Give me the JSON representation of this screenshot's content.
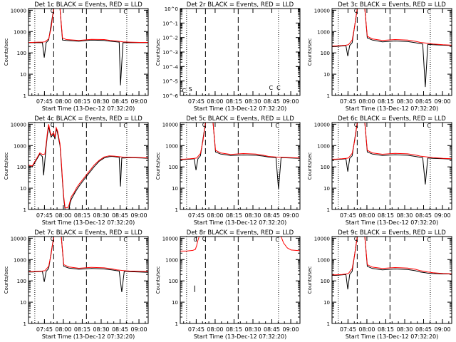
{
  "chart_data": [
    {
      "type": "line",
      "title": "Det 1c BLACK = Events, RED = LLD",
      "xlabel": "Start Time (13-Dec-12 07:32:20)",
      "ylabel": "Counts/sec",
      "yscale": "log",
      "ylim": [
        1,
        12000
      ],
      "x_ticks": [
        "07:45",
        "08:00",
        "08:15",
        "08:30",
        "08:45",
        "09:00"
      ],
      "y_ticks": [
        "1",
        "10",
        "100",
        "1000",
        "10000"
      ],
      "markers": [
        "C",
        "C"
      ],
      "series": [
        {
          "name": "Events",
          "color": "#000000",
          "x": [
            0,
            3,
            8,
            11,
            12.5,
            14,
            16,
            20,
            22,
            23.5,
            25,
            27,
            30,
            40,
            50,
            60,
            65,
            70,
            72,
            73,
            75,
            80,
            88,
            95
          ],
          "y": [
            300,
            300,
            300,
            300,
            60,
            300,
            400,
            12000,
            12000,
            12000,
            12000,
            400,
            380,
            350,
            400,
            380,
            350,
            330,
            320,
            3,
            300,
            300,
            300,
            300
          ]
        },
        {
          "name": "LLD",
          "color": "#ff0000",
          "x": [
            0,
            3,
            8,
            11,
            13,
            16,
            18,
            20,
            22,
            24,
            25,
            27,
            30,
            40,
            50,
            60,
            65,
            70,
            75,
            80,
            88,
            95
          ],
          "y": [
            310,
            310,
            320,
            320,
            330,
            450,
            1500,
            12000,
            12000,
            12000,
            12000,
            500,
            420,
            380,
            430,
            420,
            380,
            360,
            330,
            320,
            310,
            310
          ]
        }
      ]
    },
    {
      "type": "line",
      "title": "Det 2r BLACK = Events, RED = LLD",
      "xlabel": "Start Time (13-Dec-12 07:32:20)",
      "ylabel": "Counts/sec",
      "yscale": "log",
      "ylim": [
        1e-06,
        1
      ],
      "x_ticks": [
        "07:45",
        "08:00",
        "08:15",
        "08:30",
        "08:45",
        "09:00"
      ],
      "y_ticks": [
        "10^-6",
        "10^-5",
        "10^-4",
        "10^-3",
        "10^-2",
        "10^-1",
        "10^0"
      ],
      "markers": [
        "C",
        "S",
        "C",
        "C"
      ],
      "series": []
    },
    {
      "type": "line",
      "title": "Det 3c BLACK = Events, RED = LLD",
      "xlabel": "Start Time (13-Dec-12 07:32:20)",
      "ylabel": "Counts/sec",
      "yscale": "log",
      "ylim": [
        1,
        12000
      ],
      "x_ticks": [
        "07:45",
        "08:00",
        "08:15",
        "08:30",
        "08:45",
        "09:00"
      ],
      "y_ticks": [
        "1",
        "10",
        "100",
        "1000",
        "10000"
      ],
      "markers": [
        "C",
        "C"
      ],
      "series": [
        {
          "name": "Events",
          "color": "#000000",
          "x": [
            0,
            3,
            8,
            11,
            12.5,
            14,
            16,
            20,
            22,
            24,
            26,
            28,
            32,
            40,
            50,
            60,
            66,
            70,
            72,
            74,
            76,
            80,
            88,
            95
          ],
          "y": [
            200,
            200,
            210,
            220,
            70,
            220,
            300,
            12000,
            12000,
            12000,
            12000,
            500,
            400,
            330,
            360,
            340,
            300,
            270,
            260,
            2.5,
            250,
            240,
            230,
            220
          ]
        },
        {
          "name": "LLD",
          "color": "#ff0000",
          "x": [
            0,
            3,
            8,
            11,
            13,
            16,
            18,
            20,
            22,
            24,
            26,
            28,
            32,
            40,
            50,
            60,
            66,
            70,
            76,
            80,
            88,
            95
          ],
          "y": [
            210,
            210,
            220,
            230,
            240,
            400,
            1800,
            12000,
            12000,
            12000,
            12000,
            600,
            450,
            380,
            420,
            400,
            350,
            310,
            280,
            260,
            240,
            230
          ]
        }
      ]
    },
    {
      "type": "line",
      "title": "Det 4c BLACK = Events, RED = LLD",
      "xlabel": "Start Time (13-Dec-12 07:32:20)",
      "ylabel": "Counts/sec",
      "yscale": "log",
      "ylim": [
        1,
        12000
      ],
      "x_ticks": [
        "07:45",
        "08:00",
        "08:15",
        "08:30",
        "08:45",
        "09:00"
      ],
      "y_ticks": [
        "1",
        "10",
        "100",
        "1000",
        "10000"
      ],
      "markers": [
        "C",
        "C"
      ],
      "series": [
        {
          "name": "Events",
          "color": "#000000",
          "x": [
            0,
            3,
            6,
            9,
            11,
            12,
            13,
            14,
            15,
            16,
            17,
            18,
            19,
            20,
            21,
            22,
            23,
            24,
            25,
            26,
            27,
            28,
            29,
            30,
            31,
            32,
            33,
            34,
            36,
            38,
            40,
            44,
            48,
            52,
            56,
            60,
            64,
            66,
            68,
            70,
            72,
            73,
            74,
            76,
            80,
            90,
            95
          ],
          "y": [
            110,
            100,
            200,
            400,
            300,
            40,
            200,
            900,
            3000,
            8000,
            4000,
            2500,
            3000,
            3500,
            2000,
            6000,
            4000,
            2000,
            1000,
            150,
            20,
            3,
            1,
            1,
            1,
            1,
            2,
            3,
            5,
            8,
            12,
            25,
            50,
            100,
            180,
            260,
            300,
            310,
            300,
            290,
            280,
            12,
            260,
            260,
            270,
            260,
            250
          ]
        },
        {
          "name": "LLD",
          "color": "#ff0000",
          "x": [
            0,
            3,
            6,
            9,
            11,
            13,
            14,
            15,
            16,
            17,
            18,
            19,
            20,
            21,
            22,
            23,
            24,
            25,
            26,
            27,
            28,
            29,
            30,
            31,
            32,
            33,
            34,
            36,
            38,
            40,
            44,
            48,
            52,
            56,
            60,
            64,
            68,
            72,
            76,
            80,
            90,
            95
          ],
          "y": [
            120,
            110,
            220,
            450,
            380,
            400,
            1200,
            4000,
            10000,
            5000,
            3000,
            3500,
            4000,
            2500,
            7000,
            5000,
            2500,
            1200,
            200,
            25,
            4,
            1.2,
            1.2,
            1.2,
            1.5,
            2.5,
            4,
            6,
            10,
            15,
            30,
            60,
            120,
            200,
            290,
            330,
            320,
            300,
            280,
            280,
            270,
            260
          ]
        }
      ]
    },
    {
      "type": "line",
      "title": "Det 5c BLACK = Events, RED = LLD",
      "xlabel": "Start Time (13-Dec-12 07:32:20)",
      "ylabel": "Counts/sec",
      "yscale": "log",
      "ylim": [
        1,
        12000
      ],
      "x_ticks": [
        "07:45",
        "08:00",
        "08:15",
        "08:30",
        "08:45",
        "09:00"
      ],
      "y_ticks": [
        "1",
        "10",
        "100",
        "1000",
        "10000"
      ],
      "markers": [
        "C",
        "C"
      ],
      "series": [
        {
          "name": "Events",
          "color": "#000000",
          "x": [
            0,
            3,
            8,
            11,
            12.5,
            14,
            16,
            20,
            22,
            24,
            26,
            28,
            32,
            40,
            50,
            60,
            66,
            70,
            76,
            78,
            80,
            88,
            95
          ],
          "y": [
            220,
            220,
            230,
            240,
            70,
            240,
            330,
            12000,
            12000,
            12000,
            12000,
            500,
            400,
            340,
            360,
            350,
            320,
            290,
            270,
            9,
            270,
            260,
            250
          ]
        },
        {
          "name": "LLD",
          "color": "#ff0000",
          "x": [
            0,
            3,
            8,
            11,
            13,
            16,
            18,
            20,
            22,
            24,
            26,
            28,
            32,
            40,
            50,
            60,
            66,
            70,
            76,
            80,
            88,
            95
          ],
          "y": [
            230,
            230,
            240,
            250,
            260,
            420,
            1600,
            12000,
            12000,
            12000,
            12000,
            600,
            450,
            380,
            420,
            400,
            350,
            310,
            290,
            280,
            270,
            260
          ]
        }
      ]
    },
    {
      "type": "line",
      "title": "Det 6c BLACK = Events, RED = LLD",
      "xlabel": "Start Time (13-Dec-12 07:32:20)",
      "ylabel": "Counts/sec",
      "yscale": "log",
      "ylim": [
        1,
        12000
      ],
      "x_ticks": [
        "07:45",
        "08:00",
        "08:15",
        "08:30",
        "08:45",
        "09:00"
      ],
      "y_ticks": [
        "1",
        "10",
        "100",
        "1000",
        "10000"
      ],
      "markers": [
        "C",
        "C"
      ],
      "series": [
        {
          "name": "Events",
          "color": "#000000",
          "x": [
            0,
            3,
            8,
            11,
            12.5,
            14,
            16,
            20,
            22,
            24,
            26,
            28,
            32,
            40,
            50,
            60,
            66,
            70,
            72,
            74,
            76,
            80,
            88,
            95
          ],
          "y": [
            220,
            220,
            230,
            240,
            60,
            250,
            330,
            12000,
            12000,
            12000,
            12000,
            500,
            400,
            340,
            370,
            350,
            310,
            280,
            270,
            15,
            260,
            250,
            240,
            230
          ]
        },
        {
          "name": "LLD",
          "color": "#ff0000",
          "x": [
            0,
            3,
            8,
            11,
            13,
            16,
            18,
            20,
            22,
            24,
            26,
            28,
            32,
            40,
            50,
            60,
            66,
            70,
            76,
            80,
            88,
            95
          ],
          "y": [
            230,
            230,
            240,
            250,
            260,
            430,
            1700,
            12000,
            12000,
            12000,
            12000,
            600,
            450,
            390,
            430,
            410,
            360,
            320,
            290,
            270,
            250,
            240
          ]
        }
      ]
    },
    {
      "type": "line",
      "title": "Det 7c BLACK = Events, RED = LLD",
      "xlabel": "Start Time (13-Dec-12 07:32:20)",
      "ylabel": "Counts/sec",
      "yscale": "log",
      "ylim": [
        1,
        12000
      ],
      "x_ticks": [
        "07:45",
        "08:00",
        "08:15",
        "08:30",
        "08:45",
        "09:00"
      ],
      "y_ticks": [
        "1",
        "10",
        "100",
        "1000",
        "10000"
      ],
      "markers": [
        "C",
        "C"
      ],
      "series": [
        {
          "name": "Events",
          "color": "#000000",
          "x": [
            0,
            3,
            8,
            11,
            12.5,
            14,
            16,
            20,
            22,
            24,
            26,
            28,
            32,
            40,
            50,
            60,
            66,
            70,
            72,
            74,
            76,
            80,
            88,
            95
          ],
          "y": [
            260,
            260,
            270,
            280,
            90,
            280,
            380,
            12000,
            12000,
            12000,
            12000,
            480,
            400,
            350,
            380,
            360,
            330,
            300,
            290,
            30,
            280,
            270,
            260,
            250
          ]
        },
        {
          "name": "LLD",
          "color": "#ff0000",
          "x": [
            0,
            3,
            8,
            11,
            13,
            16,
            18,
            20,
            22,
            24,
            26,
            28,
            32,
            40,
            50,
            60,
            66,
            70,
            76,
            80,
            88,
            95
          ],
          "y": [
            270,
            270,
            280,
            290,
            300,
            480,
            1800,
            12000,
            12000,
            12000,
            12000,
            580,
            450,
            390,
            430,
            410,
            370,
            330,
            300,
            290,
            280,
            270
          ]
        }
      ]
    },
    {
      "type": "line",
      "title": "Det 8r BLACK = Events, RED = LLD",
      "xlabel": "Start Time (13-Dec-12 07:32:20)",
      "ylabel": "Counts/sec",
      "yscale": "log",
      "ylim": [
        1,
        12000
      ],
      "x_ticks": [
        "07:45",
        "08:00",
        "08:15",
        "08:30",
        "08:45",
        "09:00"
      ],
      "y_ticks": [
        "1",
        "10",
        "100",
        "1000",
        "10000"
      ],
      "markers": [
        "C",
        "C",
        "C"
      ],
      "series": [
        {
          "name": "Events",
          "color": "#000000",
          "x": [
            11.5,
            11.5
          ],
          "y": [
            30,
            60
          ]
        },
        {
          "name": "LLD",
          "color": "#ff0000",
          "x": [
            0,
            5,
            10,
            12,
            13,
            14,
            15,
            16
          ],
          "y": [
            2500,
            2500,
            2700,
            3000,
            4500,
            8000,
            12000,
            12000
          ]
        },
        {
          "name": "LLD (recovery)",
          "color": "#ff0000",
          "x": [
            78,
            80,
            82,
            85,
            88,
            95
          ],
          "y": [
            12000,
            12000,
            6000,
            3500,
            2800,
            2600
          ]
        }
      ]
    },
    {
      "type": "line",
      "title": "Det 9c BLACK = Events, RED = LLD",
      "xlabel": "Start Time (13-Dec-12 07:32:20)",
      "ylabel": "Counts/sec",
      "yscale": "log",
      "ylim": [
        1,
        12000
      ],
      "x_ticks": [
        "07:45",
        "08:00",
        "08:15",
        "08:30",
        "08:45",
        "09:00"
      ],
      "y_ticks": [
        "1",
        "10",
        "100",
        "1000",
        "10000"
      ],
      "markers": [
        "C",
        "C"
      ],
      "series": [
        {
          "name": "Events",
          "color": "#000000",
          "x": [
            0,
            3,
            8,
            11,
            12.5,
            14,
            16,
            20,
            22,
            24,
            26,
            28,
            32,
            40,
            50,
            60,
            66,
            70,
            74,
            76,
            80,
            88,
            95
          ],
          "y": [
            180,
            180,
            190,
            200,
            40,
            200,
            280,
            12000,
            12000,
            12000,
            12000,
            480,
            380,
            330,
            360,
            340,
            300,
            260,
            240,
            230,
            220,
            210,
            210
          ]
        },
        {
          "name": "LLD",
          "color": "#ff0000",
          "x": [
            0,
            3,
            8,
            11,
            13,
            16,
            18,
            20,
            22,
            24,
            26,
            28,
            32,
            40,
            50,
            60,
            66,
            70,
            76,
            80,
            88,
            95
          ],
          "y": [
            190,
            190,
            200,
            210,
            220,
            380,
            1700,
            12000,
            12000,
            12000,
            12000,
            580,
            440,
            380,
            420,
            400,
            350,
            300,
            260,
            240,
            220,
            215
          ]
        }
      ]
    }
  ]
}
